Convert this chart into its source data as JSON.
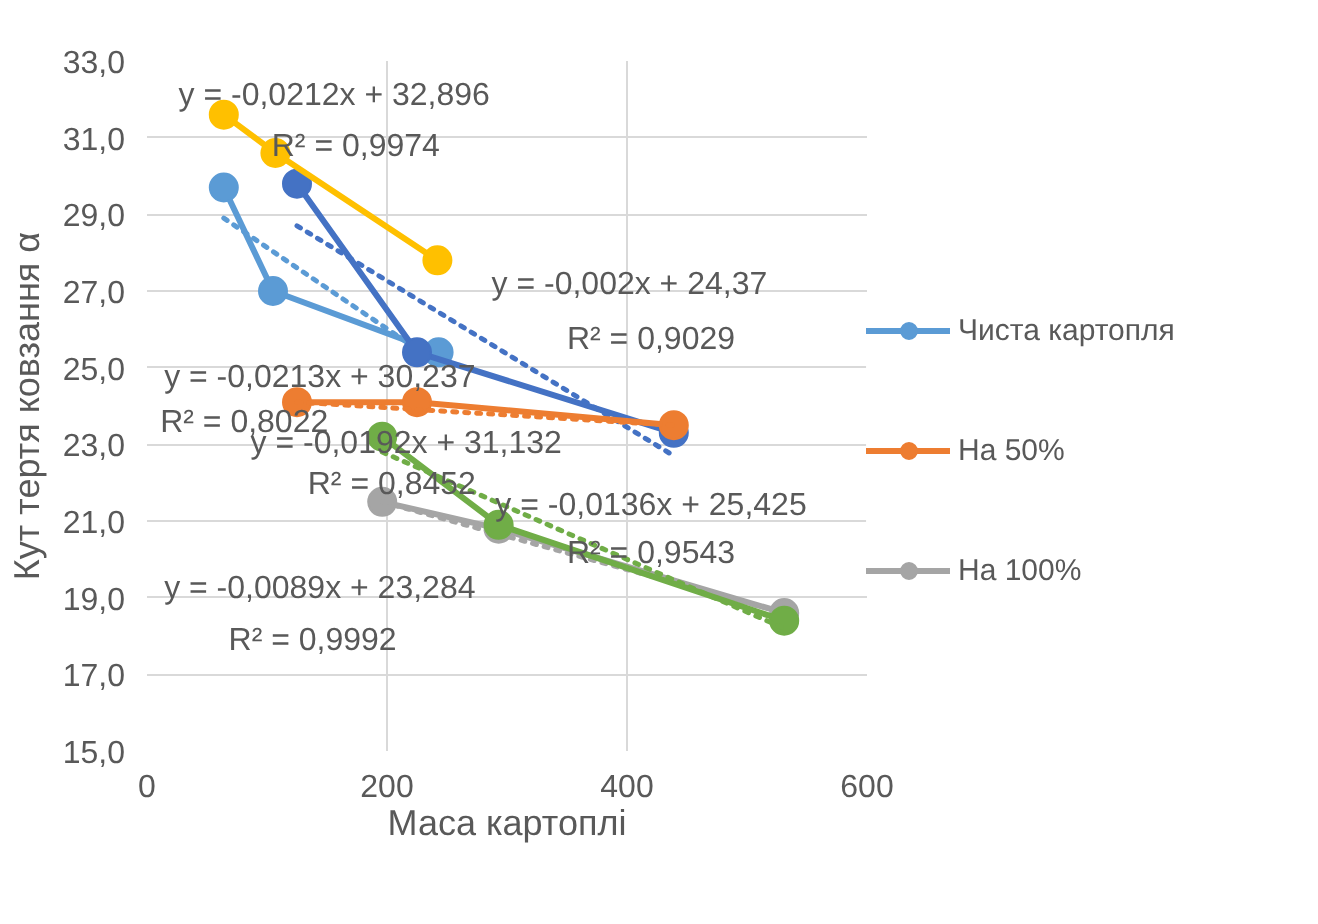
{
  "chart_data": {
    "type": "line",
    "xlabel": "Маса картоплі",
    "ylabel": "Кут тертя ковзання α",
    "xlim": [
      0,
      600
    ],
    "xticks": [
      0,
      200,
      400,
      600
    ],
    "ylim": [
      15,
      33
    ],
    "yticks": [
      {
        "value": 15,
        "label": "15,0"
      },
      {
        "value": 17,
        "label": "17,0"
      },
      {
        "value": 19,
        "label": "19,0"
      },
      {
        "value": 21,
        "label": "21,0"
      },
      {
        "value": 23,
        "label": "23,0"
      },
      {
        "value": 25,
        "label": "25,0"
      },
      {
        "value": 27,
        "label": "27,0"
      },
      {
        "value": 29,
        "label": "29,0"
      },
      {
        "value": 31,
        "label": "31,0"
      },
      {
        "value": 33,
        "label": "33,0"
      }
    ],
    "grid": true,
    "legend": "right",
    "marker": "circle",
    "line_style": "solid",
    "series": [
      {
        "name": "Чиста картопля",
        "color": "#5b9bd5",
        "x": [
          64,
          105,
          243
        ],
        "values": [
          29.7,
          27.0,
          25.4
        ]
      },
      {
        "color": "#5b9bd5",
        "type": "line",
        "marker": "none",
        "line_style": "dotted",
        "x": [
          64,
          243
        ],
        "values": [
          28.9,
          25.1
        ]
      },
      {
        "color": "#4472c4",
        "x": [
          125,
          225,
          439
        ],
        "values": [
          29.8,
          25.4,
          23.3
        ]
      },
      {
        "color": "#4472c4",
        "type": "line",
        "marker": "none",
        "line_style": "dotted",
        "x": [
          125,
          439
        ],
        "values": [
          28.7,
          22.7
        ]
      },
      {
        "name": "На 50%",
        "color": "#ed7d31",
        "x": [
          125,
          225,
          439
        ],
        "values": [
          24.1,
          24.1,
          23.5
        ]
      },
      {
        "color": "#ed7d31",
        "type": "line",
        "marker": "none",
        "line_style": "dotted",
        "x": [
          125,
          439
        ],
        "values": [
          24.1,
          23.5
        ]
      },
      {
        "color": "#ffc000",
        "x": [
          64,
          107,
          242
        ],
        "values": [
          31.6,
          30.6,
          27.8
        ]
      },
      {
        "name": "На 100%",
        "color": "#a5a5a5",
        "x": [
          196,
          293,
          531
        ],
        "values": [
          21.5,
          20.8,
          18.6
        ]
      },
      {
        "color": "#a5a5a5",
        "type": "line",
        "marker": "none",
        "line_style": "dotted",
        "x": [
          196,
          531
        ],
        "values": [
          21.5,
          18.6
        ]
      },
      {
        "color": "#70ad47",
        "x": [
          196,
          293,
          531
        ],
        "values": [
          23.2,
          20.9,
          18.4
        ]
      },
      {
        "color": "#70ad47",
        "type": "line",
        "marker": "none",
        "line_style": "dotted",
        "x": [
          196,
          531
        ],
        "values": [
          22.8,
          18.2
        ]
      }
    ],
    "annotations": [
      "y = -0,0212x + 32,896",
      "R² = 0,9974",
      "y = -0,002x + 24,37",
      "R² = 0,9029",
      "y = -0,0213x + 30,237",
      "R² = 0,8022",
      "y = -0,0192x + 31,132",
      "R² = 0,8452",
      "y = -0,0136x + 25,425",
      "R² = 0,9543",
      "y = -0,0089x + 23,284",
      "R² = 0,9992"
    ]
  }
}
